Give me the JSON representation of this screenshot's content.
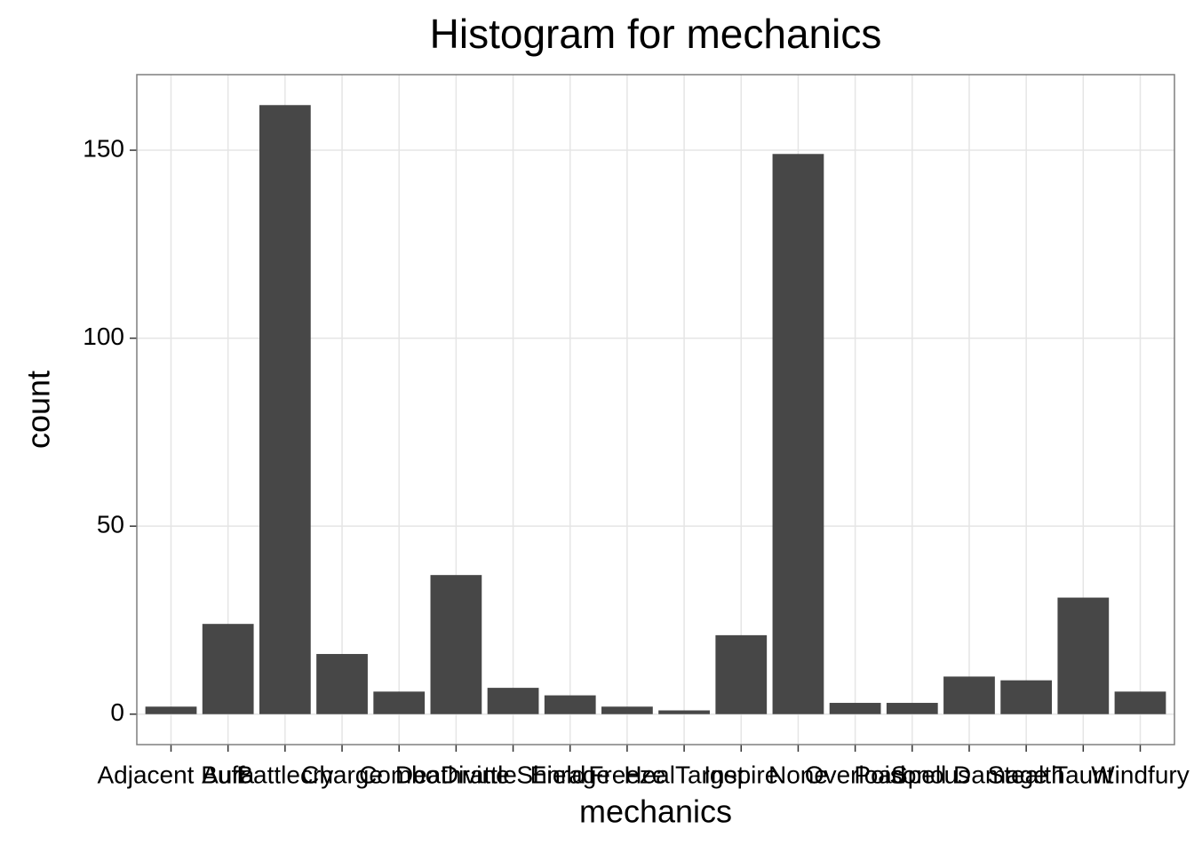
{
  "chart_data": {
    "type": "bar",
    "title": "Histogram for mechanics",
    "x_label": "mechanics",
    "y_label": "count",
    "categories": [
      "Adjacent Buff",
      "Aura",
      "Battlecry",
      "Charge",
      "Combo",
      "Deathrattle",
      "Divine Shield",
      "Enrage",
      "Freeze",
      "HealTarget",
      "Inspire",
      "None",
      "Overload",
      "Poisonous",
      "Spell Damage",
      "Stealth",
      "Taunt",
      "Windfury"
    ],
    "values": [
      2,
      24,
      162,
      16,
      6,
      37,
      7,
      5,
      2,
      1,
      21,
      149,
      3,
      3,
      10,
      9,
      31,
      6
    ],
    "color": "#474747",
    "ylim": [
      -8.1,
      170.1
    ],
    "yticks": [
      0,
      50,
      100,
      150
    ],
    "grid": true
  }
}
